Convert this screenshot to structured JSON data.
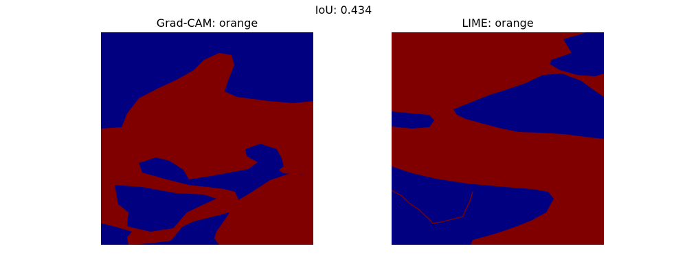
{
  "figure": {
    "suptitle": "IoU: 0.434"
  },
  "chart_data": [
    {
      "type": "heatmap",
      "title": "Grad-CAM: orange",
      "method": "Grad-CAM",
      "class_label": "orange",
      "values": "binary mask (0 = background, 1 = salient)",
      "colors": {
        "background": "#000080",
        "salient": "#800000"
      },
      "axes": "off"
    },
    {
      "type": "heatmap",
      "title": "LIME: orange",
      "method": "LIME",
      "class_label": "orange",
      "values": "binary mask (0 = background, 1 = salient)",
      "colors": {
        "background": "#000080",
        "salient": "#800000"
      },
      "axes": "off"
    }
  ],
  "iou": 0.434
}
